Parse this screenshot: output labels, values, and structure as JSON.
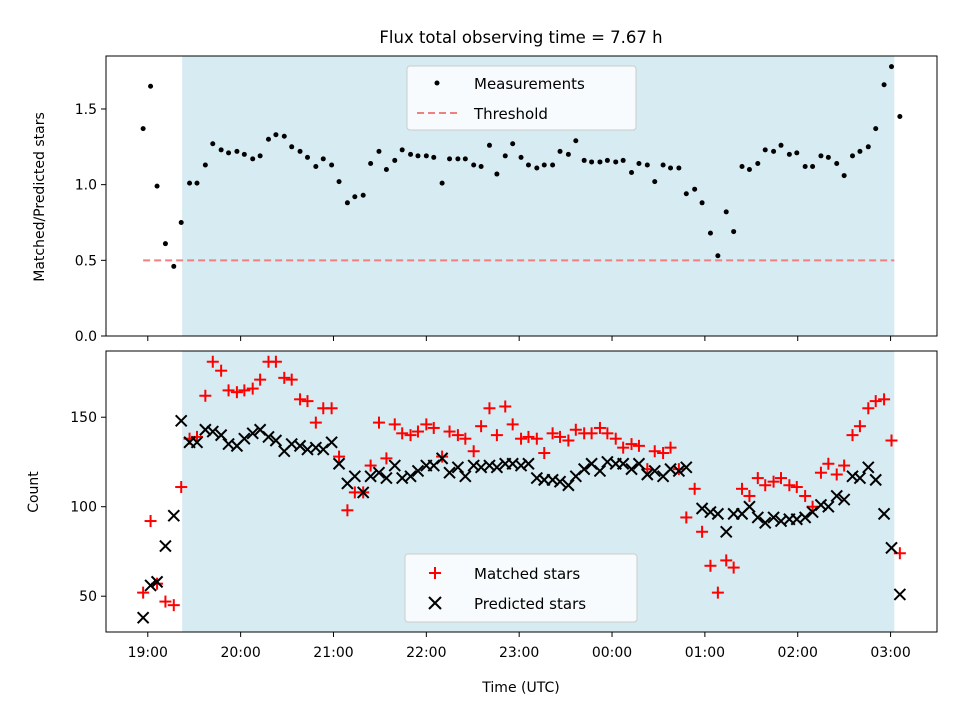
{
  "chart_data": [
    {
      "type": "scatter",
      "title": "Flux total observing time = 7.67 h",
      "xlabel": "",
      "ylabel": "Matched/Predicted stars",
      "ylim": [
        0,
        1.85
      ],
      "yticks": [
        "0.0",
        "0.5",
        "1.0",
        "1.5"
      ],
      "xlim_hours": [
        -0.45,
        8.5
      ],
      "shaded_span": [
        0.37,
        8.04
      ],
      "legend_position": "top-center",
      "threshold": {
        "name": "Threshold",
        "value": 0.5,
        "x_range": [
          -0.05,
          8.04
        ],
        "color": "#f08080"
      },
      "series": [
        {
          "name": "Measurements",
          "color": "#000000",
          "x": [
            -0.05,
            0.03,
            0.1,
            0.19,
            0.28,
            0.36,
            0.45,
            0.53,
            0.62,
            0.7,
            0.79,
            0.87,
            0.96,
            1.04,
            1.13,
            1.21,
            1.3,
            1.38,
            1.47,
            1.55,
            1.64,
            1.72,
            1.81,
            1.89,
            1.98,
            2.06,
            2.15,
            2.23,
            2.32,
            2.4,
            2.49,
            2.57,
            2.66,
            2.74,
            2.83,
            2.91,
            3.0,
            3.08,
            3.17,
            3.25,
            3.34,
            3.42,
            3.51,
            3.59,
            3.68,
            3.76,
            3.85,
            3.93,
            4.02,
            4.1,
            4.19,
            4.27,
            4.36,
            4.44,
            4.53,
            4.61,
            4.7,
            4.78,
            4.87,
            4.95,
            5.04,
            5.12,
            5.21,
            5.29,
            5.38,
            5.46,
            5.55,
            5.63,
            5.72,
            5.8,
            5.89,
            5.97,
            6.06,
            6.14,
            6.23,
            6.31,
            6.4,
            6.48,
            6.57,
            6.65,
            6.74,
            6.82,
            6.91,
            6.99,
            7.08,
            7.16,
            7.25,
            7.33,
            7.42,
            7.5,
            7.59,
            7.67,
            7.76,
            7.84,
            7.93,
            8.01,
            8.1
          ],
          "y": [
            1.37,
            1.65,
            0.99,
            0.61,
            0.46,
            0.75,
            1.01,
            1.01,
            1.13,
            1.27,
            1.23,
            1.21,
            1.22,
            1.2,
            1.17,
            1.19,
            1.3,
            1.33,
            1.32,
            1.25,
            1.22,
            1.18,
            1.12,
            1.17,
            1.13,
            1.02,
            0.88,
            0.92,
            0.93,
            1.14,
            1.22,
            1.1,
            1.16,
            1.23,
            1.2,
            1.19,
            1.19,
            1.18,
            1.01,
            1.17,
            1.17,
            1.17,
            1.13,
            1.12,
            1.26,
            1.07,
            1.19,
            1.27,
            1.18,
            1.13,
            1.11,
            1.13,
            1.13,
            1.22,
            1.2,
            1.29,
            1.16,
            1.15,
            1.15,
            1.16,
            1.15,
            1.16,
            1.08,
            1.14,
            1.13,
            1.02,
            1.13,
            1.11,
            1.11,
            0.94,
            0.97,
            0.88,
            0.68,
            0.53,
            0.82,
            0.69,
            1.12,
            1.1,
            1.14,
            1.23,
            1.22,
            1.26,
            1.2,
            1.21,
            1.12,
            1.12,
            1.19,
            1.18,
            1.14,
            1.06,
            1.19,
            1.22,
            1.25,
            1.37,
            1.66,
            1.78,
            1.45
          ]
        }
      ]
    },
    {
      "type": "scatter",
      "title": "",
      "xlabel": "Time (UTC)",
      "ylabel": "Count",
      "ylim": [
        30,
        187
      ],
      "yticks": [
        "50",
        "100",
        "150"
      ],
      "xlim_hours": [
        -0.45,
        8.5
      ],
      "shaded_span": [
        0.37,
        8.04
      ],
      "legend_position": "bottom-center",
      "xtick_hours": [
        0,
        1,
        2,
        3,
        4,
        5,
        6,
        7,
        8
      ],
      "xtick_labels": [
        "19:00",
        "20:00",
        "21:00",
        "22:00",
        "23:00",
        "00:00",
        "01:00",
        "02:00",
        "03:00"
      ],
      "series": [
        {
          "name": "Matched stars",
          "marker": "plus",
          "color": "#ff0000",
          "x": [
            -0.05,
            0.03,
            0.1,
            0.19,
            0.28,
            0.36,
            0.45,
            0.53,
            0.62,
            0.7,
            0.79,
            0.87,
            0.96,
            1.04,
            1.13,
            1.21,
            1.3,
            1.38,
            1.47,
            1.55,
            1.64,
            1.72,
            1.81,
            1.89,
            1.98,
            2.06,
            2.15,
            2.23,
            2.32,
            2.4,
            2.49,
            2.57,
            2.66,
            2.74,
            2.83,
            2.91,
            3.0,
            3.08,
            3.17,
            3.25,
            3.34,
            3.42,
            3.51,
            3.59,
            3.68,
            3.76,
            3.85,
            3.93,
            4.02,
            4.1,
            4.19,
            4.27,
            4.36,
            4.44,
            4.53,
            4.61,
            4.7,
            4.78,
            4.87,
            4.95,
            5.04,
            5.12,
            5.21,
            5.29,
            5.38,
            5.46,
            5.55,
            5.63,
            5.72,
            5.8,
            5.89,
            5.97,
            6.06,
            6.14,
            6.23,
            6.31,
            6.4,
            6.48,
            6.57,
            6.65,
            6.74,
            6.82,
            6.91,
            6.99,
            7.08,
            7.16,
            7.25,
            7.33,
            7.42,
            7.5,
            7.59,
            7.67,
            7.76,
            7.84,
            7.93,
            8.01,
            8.1
          ],
          "y": [
            52,
            92,
            57,
            47,
            45,
            111,
            138,
            139,
            162,
            181,
            176,
            165,
            164,
            165,
            166,
            171,
            181,
            181,
            172,
            171,
            160,
            159,
            147,
            155,
            155,
            128,
            98,
            108,
            108,
            123,
            147,
            127,
            146,
            141,
            140,
            142,
            146,
            144,
            128,
            142,
            140,
            138,
            131,
            145,
            155,
            140,
            156,
            146,
            138,
            139,
            138,
            130,
            141,
            139,
            137,
            143,
            141,
            141,
            144,
            141,
            138,
            133,
            135,
            134,
            121,
            131,
            130,
            133,
            121,
            94,
            110,
            86,
            67,
            52,
            70,
            66,
            110,
            106,
            116,
            112,
            114,
            116,
            112,
            111,
            106,
            100,
            119,
            124,
            118,
            123,
            140,
            145,
            155,
            159,
            160,
            137,
            74
          ]
        },
        {
          "name": "Predicted stars",
          "marker": "x",
          "color": "#000000",
          "x": [
            -0.05,
            0.03,
            0.1,
            0.19,
            0.28,
            0.36,
            0.45,
            0.53,
            0.62,
            0.7,
            0.79,
            0.87,
            0.96,
            1.04,
            1.13,
            1.21,
            1.3,
            1.38,
            1.47,
            1.55,
            1.64,
            1.72,
            1.81,
            1.89,
            1.98,
            2.06,
            2.15,
            2.23,
            2.32,
            2.4,
            2.49,
            2.57,
            2.66,
            2.74,
            2.83,
            2.91,
            3.0,
            3.08,
            3.17,
            3.25,
            3.34,
            3.42,
            3.51,
            3.59,
            3.68,
            3.76,
            3.85,
            3.93,
            4.02,
            4.1,
            4.19,
            4.27,
            4.36,
            4.44,
            4.53,
            4.61,
            4.7,
            4.78,
            4.87,
            4.95,
            5.04,
            5.12,
            5.21,
            5.29,
            5.38,
            5.46,
            5.55,
            5.63,
            5.72,
            5.8,
            5.89,
            5.97,
            6.06,
            6.14,
            6.23,
            6.31,
            6.4,
            6.48,
            6.57,
            6.65,
            6.74,
            6.82,
            6.91,
            6.99,
            7.08,
            7.16,
            7.25,
            7.33,
            7.42,
            7.5,
            7.59,
            7.67,
            7.76,
            7.84,
            7.93,
            8.01,
            8.1
          ],
          "y": [
            38,
            56,
            58,
            78,
            95,
            148,
            136,
            136,
            143,
            142,
            140,
            135,
            134,
            138,
            141,
            143,
            139,
            137,
            131,
            135,
            134,
            132,
            133,
            132,
            136,
            124,
            113,
            117,
            108,
            117,
            119,
            116,
            123,
            116,
            117,
            120,
            123,
            123,
            127,
            119,
            122,
            117,
            123,
            122,
            123,
            122,
            124,
            124,
            123,
            124,
            116,
            115,
            115,
            114,
            112,
            117,
            121,
            124,
            120,
            125,
            124,
            124,
            121,
            124,
            118,
            120,
            117,
            121,
            120,
            122,
            null,
            99,
            97,
            96,
            86,
            96,
            96,
            100,
            94,
            91,
            94,
            92,
            93,
            93,
            94,
            97,
            101,
            100,
            106,
            104,
            117,
            116,
            122,
            115,
            96,
            77,
            51
          ]
        }
      ]
    }
  ]
}
